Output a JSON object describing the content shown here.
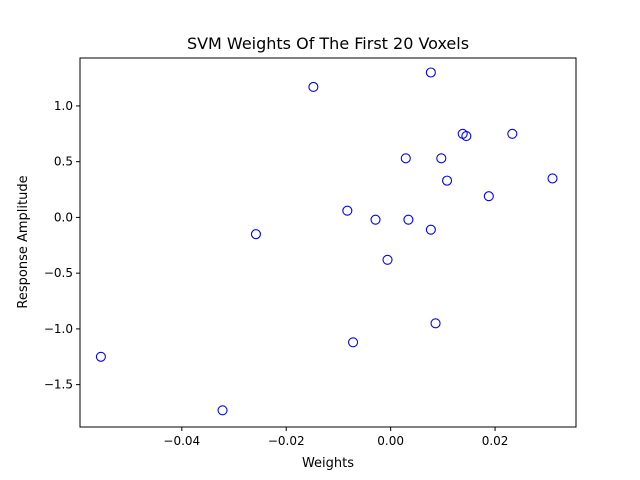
{
  "chart_data": {
    "type": "scatter",
    "title": "SVM Weights Of The First 20 Voxels",
    "xlabel": "Weights",
    "ylabel": "Response Amplitude",
    "xlim": [
      -0.0595,
      0.0355
    ],
    "ylim": [
      -1.88,
      1.43
    ],
    "xticks": [
      -0.04,
      -0.02,
      0.0,
      0.02
    ],
    "xtick_labels": [
      "−0.04",
      "−0.02",
      "0.00",
      "0.02"
    ],
    "yticks": [
      -1.5,
      -1.0,
      -0.5,
      0.0,
      0.5,
      1.0
    ],
    "ytick_labels": [
      "−1.5",
      "−1.0",
      "−0.5",
      "0.0",
      "0.5",
      "1.0"
    ],
    "grid": false,
    "marker": "open-circle",
    "marker_color": "#0000ff",
    "points": [
      {
        "x": -0.0555,
        "y": -1.25
      },
      {
        "x": -0.0322,
        "y": -1.73
      },
      {
        "x": -0.0258,
        "y": -0.15
      },
      {
        "x": -0.0148,
        "y": 1.17
      },
      {
        "x": -0.0083,
        "y": 0.06
      },
      {
        "x": -0.0072,
        "y": -1.12
      },
      {
        "x": -0.0029,
        "y": -0.02
      },
      {
        "x": -0.0006,
        "y": -0.38
      },
      {
        "x": 0.0029,
        "y": 0.53
      },
      {
        "x": 0.0034,
        "y": -0.02
      },
      {
        "x": 0.0077,
        "y": 1.3
      },
      {
        "x": 0.0077,
        "y": -0.11
      },
      {
        "x": 0.0086,
        "y": -0.95
      },
      {
        "x": 0.0097,
        "y": 0.53
      },
      {
        "x": 0.0108,
        "y": 0.33
      },
      {
        "x": 0.0138,
        "y": 0.75
      },
      {
        "x": 0.0145,
        "y": 0.73
      },
      {
        "x": 0.0188,
        "y": 0.19
      },
      {
        "x": 0.0233,
        "y": 0.75
      },
      {
        "x": 0.031,
        "y": 0.35
      }
    ]
  }
}
